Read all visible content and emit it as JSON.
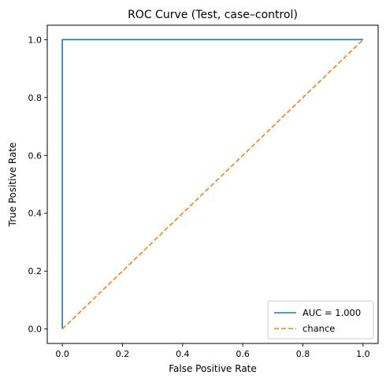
{
  "chart_data": {
    "type": "line",
    "title": "ROC Curve (Test, case–control)",
    "xlabel": "False Positive Rate",
    "ylabel": "True Positive Rate",
    "xlim": [
      -0.05,
      1.05
    ],
    "ylim": [
      -0.05,
      1.05
    ],
    "xticks": [
      0.0,
      0.2,
      0.4,
      0.6,
      0.8,
      1.0
    ],
    "yticks": [
      0.0,
      0.2,
      0.4,
      0.6,
      0.8,
      1.0
    ],
    "xtick_labels": [
      "0.0",
      "0.2",
      "0.4",
      "0.6",
      "0.8",
      "1.0"
    ],
    "ytick_labels": [
      "0.0",
      "0.2",
      "0.4",
      "0.6",
      "0.8",
      "1.0"
    ],
    "grid": false,
    "legend_position": "bottom-right",
    "series": [
      {
        "name": "AUC = 1.000",
        "color": "#1f77b4",
        "linestyle": "solid",
        "x": [
          0.0,
          0.0,
          1.0
        ],
        "y": [
          0.0,
          1.0,
          1.0
        ]
      },
      {
        "name": "chance",
        "color": "#ff7f0e",
        "linestyle": "dashed",
        "x": [
          0.0,
          1.0
        ],
        "y": [
          0.0,
          1.0
        ]
      }
    ]
  }
}
